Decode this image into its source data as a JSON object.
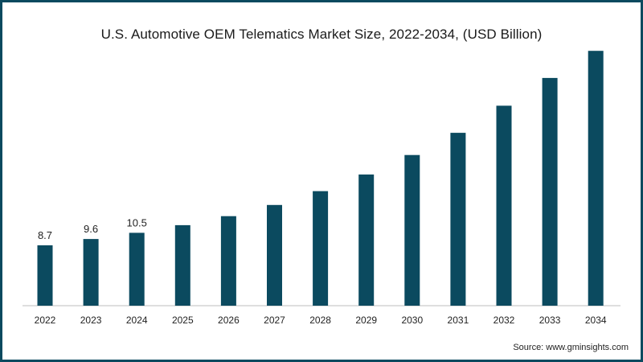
{
  "chart_data": {
    "type": "bar",
    "title": "U.S. Automotive OEM Telematics Market Size, 2022-2034, (USD Billion)",
    "categories": [
      "2022",
      "2023",
      "2024",
      "2025",
      "2026",
      "2027",
      "2028",
      "2029",
      "2030",
      "2031",
      "2032",
      "2033",
      "2034"
    ],
    "values": [
      8.7,
      9.6,
      10.5,
      11.6,
      12.9,
      14.5,
      16.5,
      18.9,
      21.7,
      24.9,
      28.8,
      32.8,
      36.7
    ],
    "data_labels": [
      "8.7",
      "9.6",
      "10.5",
      "",
      "",
      "",
      "",
      "",
      "",
      "",
      "",
      "",
      ""
    ],
    "xlabel": "",
    "ylabel": "",
    "ylim": [
      0,
      38
    ],
    "grid": false,
    "colors": {
      "bar": "#0b4a5f",
      "frame": "#0b4a5f"
    }
  },
  "source": "Source: www.gminsights.com"
}
